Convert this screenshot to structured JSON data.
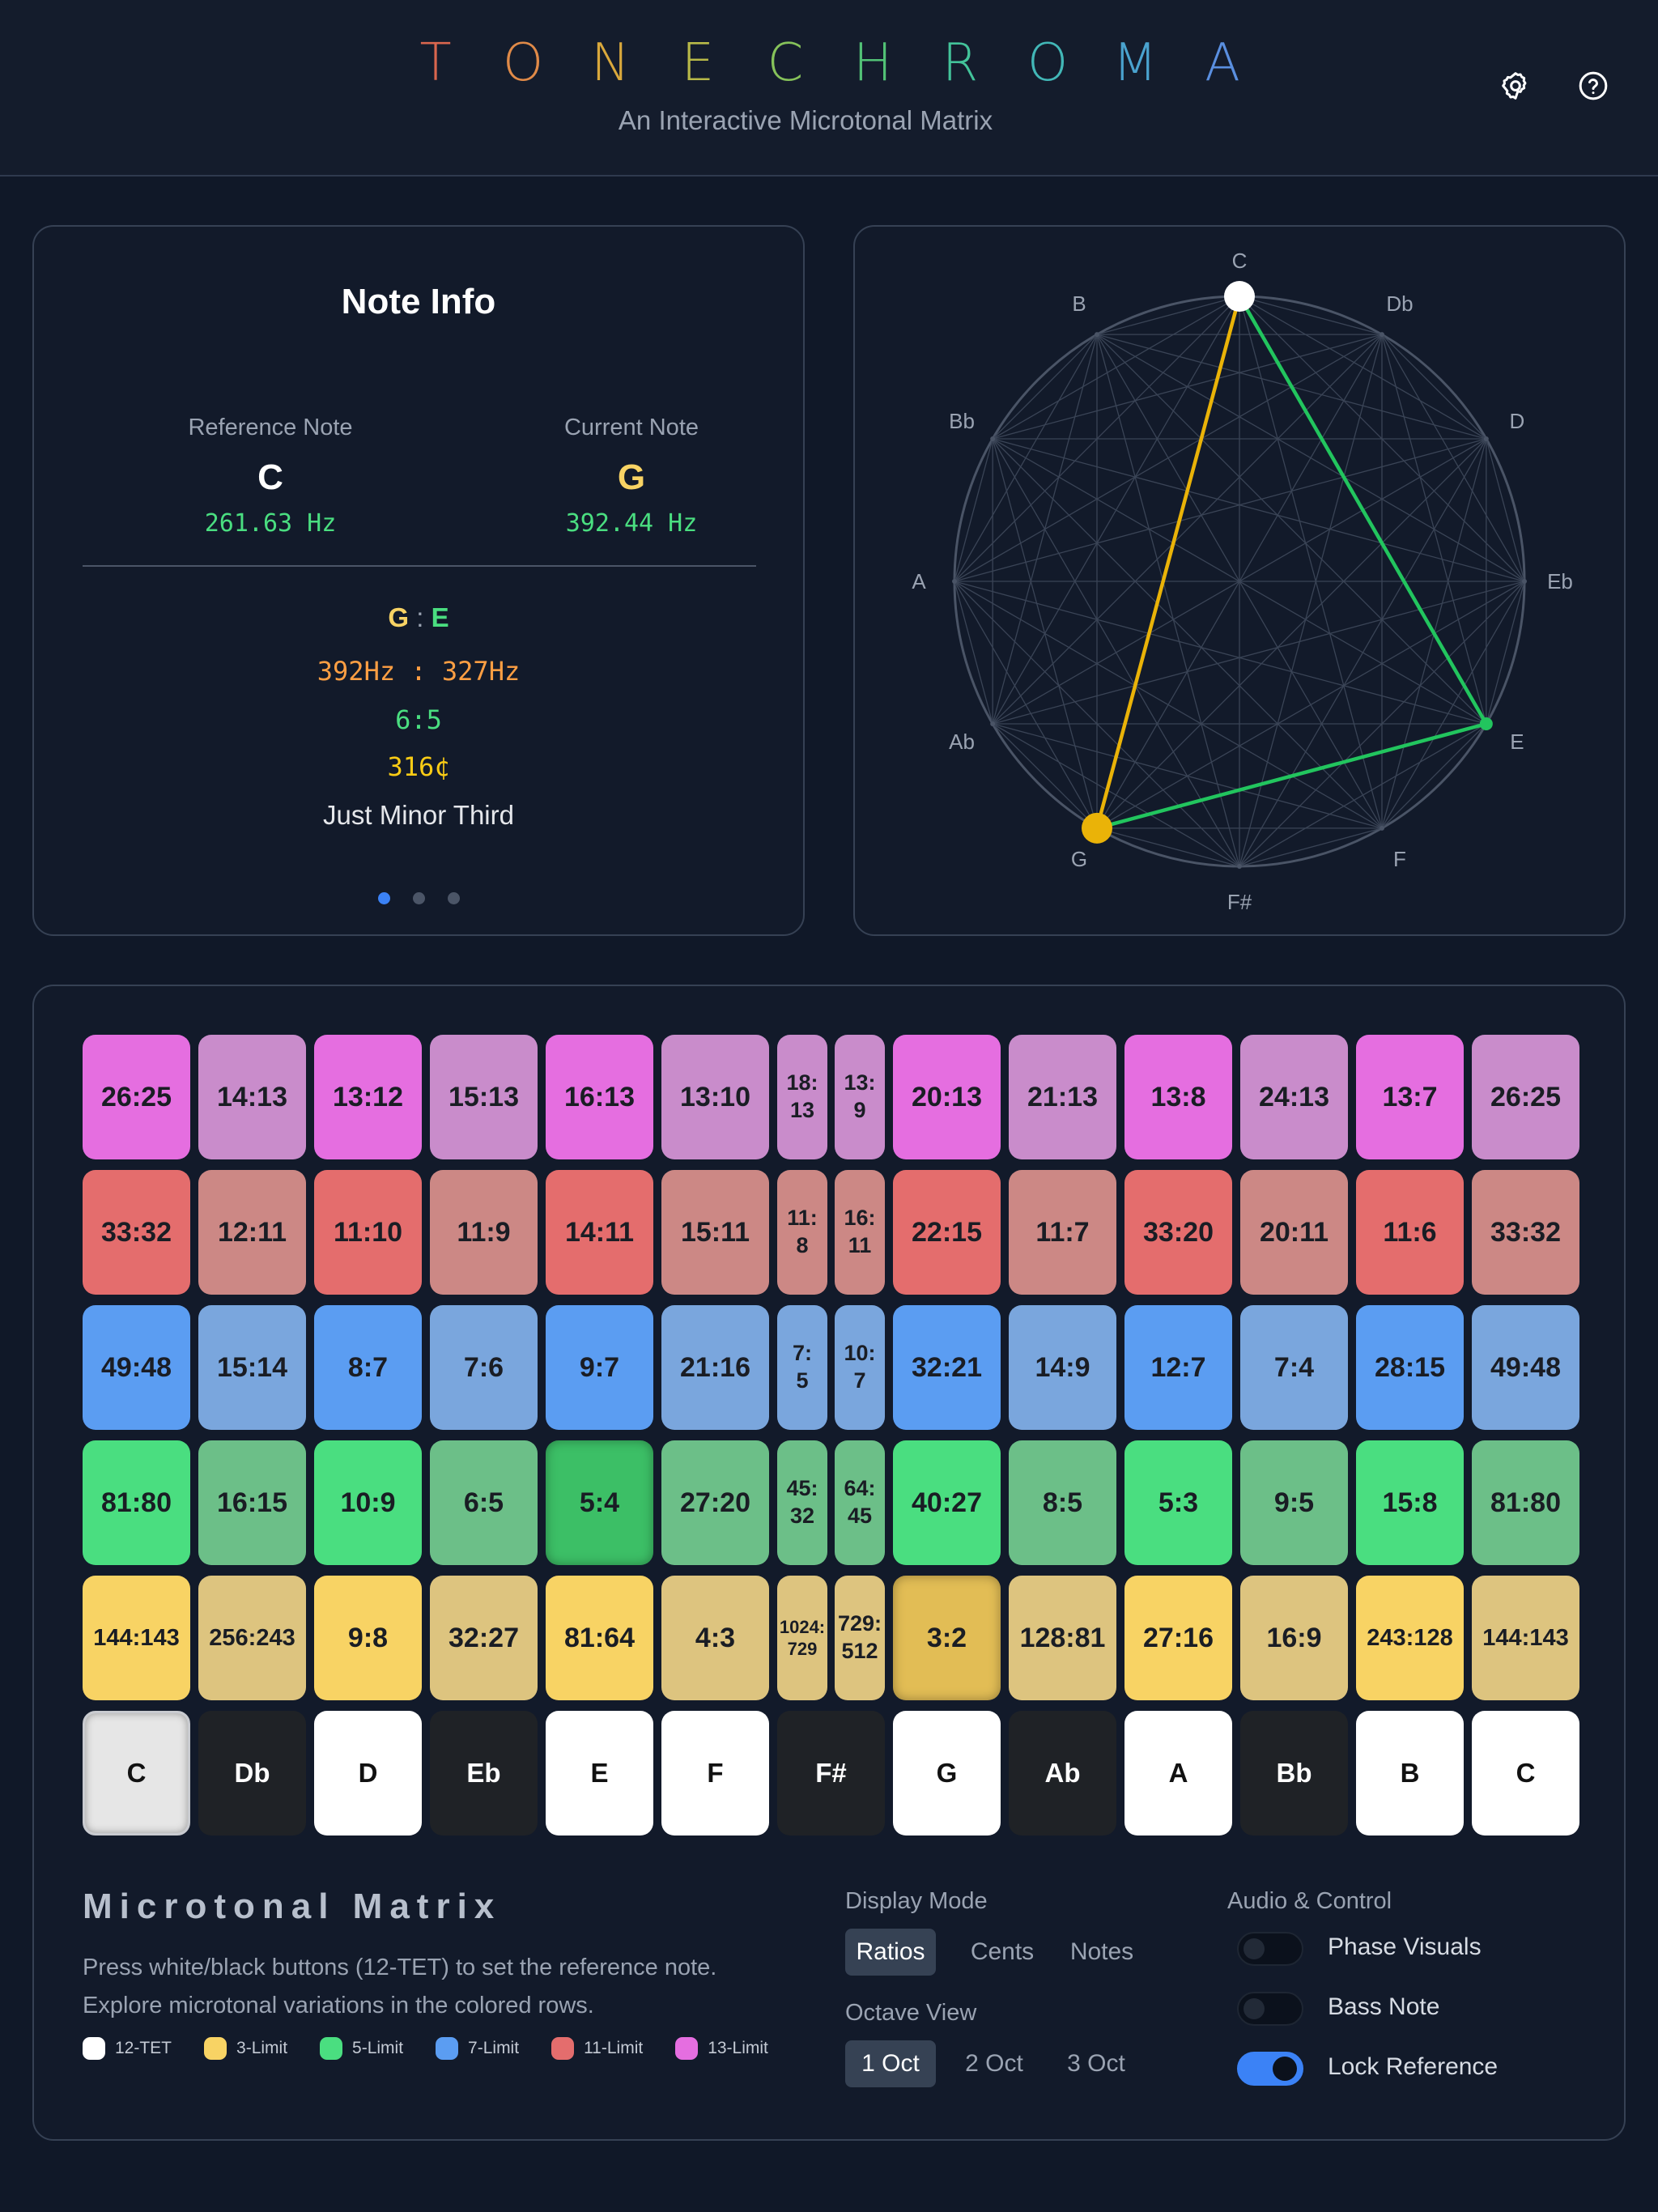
{
  "header": {
    "brand_letters": [
      "T",
      "O",
      "N",
      "E",
      "C",
      "H",
      "R",
      "O",
      "M",
      "A"
    ],
    "brand_colors": [
      "#d9664e",
      "#e08a48",
      "#d9a83c",
      "#b8b948",
      "#86c25a",
      "#52c276",
      "#43c39a",
      "#42b7b7",
      "#4aa3cf",
      "#5a8fe0"
    ],
    "subtitle": "An Interactive Microtonal Matrix"
  },
  "note_info": {
    "title": "Note Info",
    "reference_label": "Reference Note",
    "reference_note": "C",
    "reference_hz": "261.63 Hz",
    "current_label": "Current Note",
    "current_note": "G",
    "current_hz": "392.44 Hz",
    "interval_note_a": "G",
    "interval_sep": ":",
    "interval_note_b": "E",
    "freq_ratio": "392Hz : 327Hz",
    "ratio": "6:5",
    "cents": "316¢",
    "interval_name": "Just Minor Third",
    "pages": 3,
    "active_page": 0
  },
  "circle": {
    "notes": [
      "C",
      "Db",
      "D",
      "Eb",
      "E",
      "F",
      "F#",
      "G",
      "Ab",
      "A",
      "Bb",
      "B"
    ],
    "reference": "C",
    "current": "G",
    "third": "E"
  },
  "matrix": {
    "rows": [
      {
        "limit": "13-Limit",
        "color_a": "#e56ee0",
        "color_b": "#c98ccb",
        "cells": [
          "26:25",
          "14:13",
          "13:12",
          "15:13",
          "16:13",
          "13:10",
          "18:\n13",
          "13:\n9",
          "20:13",
          "21:13",
          "13:8",
          "24:13",
          "13:7",
          "26:25"
        ]
      },
      {
        "limit": "11-Limit",
        "color_a": "#e46d6d",
        "color_b": "#cc8885",
        "cells": [
          "33:32",
          "12:11",
          "11:10",
          "11:9",
          "14:11",
          "15:11",
          "11:\n8",
          "16:\n11",
          "22:15",
          "11:7",
          "33:20",
          "20:11",
          "11:6",
          "33:32"
        ]
      },
      {
        "limit": "7-Limit",
        "color_a": "#5b9df2",
        "color_b": "#7aa6dd",
        "cells": [
          "49:48",
          "15:14",
          "8:7",
          "7:6",
          "9:7",
          "21:16",
          "7:\n5",
          "10:\n7",
          "32:21",
          "14:9",
          "12:7",
          "7:4",
          "28:15",
          "49:48"
        ]
      },
      {
        "limit": "5-Limit",
        "color_a": "#4ade80",
        "color_b": "#6cbf88",
        "cells": [
          "81:80",
          "16:15",
          "10:9",
          "6:5",
          "5:4",
          "27:20",
          "45:\n32",
          "64:\n45",
          "40:27",
          "8:5",
          "5:3",
          "9:5",
          "15:8",
          "81:80"
        ],
        "selected": 4,
        "selected_color": "#3cbf66"
      },
      {
        "limit": "3-Limit",
        "color_a": "#f8d364",
        "color_b": "#ddc47f",
        "cells": [
          "144:143",
          "256:243",
          "9:8",
          "32:27",
          "81:64",
          "4:3",
          "1024:\n729",
          "729:\n512",
          "3:2",
          "128:81",
          "27:16",
          "16:9",
          "243:128",
          "144:143"
        ],
        "selected": 8,
        "selected_color": "#e2bd55"
      }
    ],
    "keys": [
      {
        "label": "C",
        "type": "ref"
      },
      {
        "label": "Db",
        "type": "black"
      },
      {
        "label": "D",
        "type": "white"
      },
      {
        "label": "Eb",
        "type": "black"
      },
      {
        "label": "E",
        "type": "white"
      },
      {
        "label": "F",
        "type": "white"
      },
      {
        "label": "F#",
        "type": "black"
      },
      {
        "label": "G",
        "type": "white"
      },
      {
        "label": "Ab",
        "type": "black"
      },
      {
        "label": "A",
        "type": "white"
      },
      {
        "label": "Bb",
        "type": "black"
      },
      {
        "label": "B",
        "type": "white"
      },
      {
        "label": "C",
        "type": "white"
      }
    ]
  },
  "controls": {
    "title": "Microtonal Matrix",
    "desc_line1": "Press white/black buttons (12-TET) to set the reference note.",
    "desc_line2": "Explore microtonal variations in the colored rows.",
    "legend": [
      {
        "label": "12-TET",
        "color": "#ffffff"
      },
      {
        "label": "3-Limit",
        "color": "#f8d364"
      },
      {
        "label": "5-Limit",
        "color": "#4ade80"
      },
      {
        "label": "7-Limit",
        "color": "#5b9df2"
      },
      {
        "label": "11-Limit",
        "color": "#e46d6d"
      },
      {
        "label": "13-Limit",
        "color": "#e56ee0"
      }
    ],
    "display_mode_label": "Display Mode",
    "display_modes": [
      "Ratios",
      "Cents",
      "Notes"
    ],
    "display_mode_active": "Ratios",
    "octave_view_label": "Octave View",
    "octave_views": [
      "1 Oct",
      "2 Oct",
      "3 Oct"
    ],
    "octave_view_active": "1 Oct",
    "audio_label": "Audio & Control",
    "phase_visuals_label": "Phase Visuals",
    "phase_visuals_on": false,
    "bass_note_label": "Bass Note",
    "bass_note_on": false,
    "lock_reference_label": "Lock Reference",
    "lock_reference_on": true
  }
}
